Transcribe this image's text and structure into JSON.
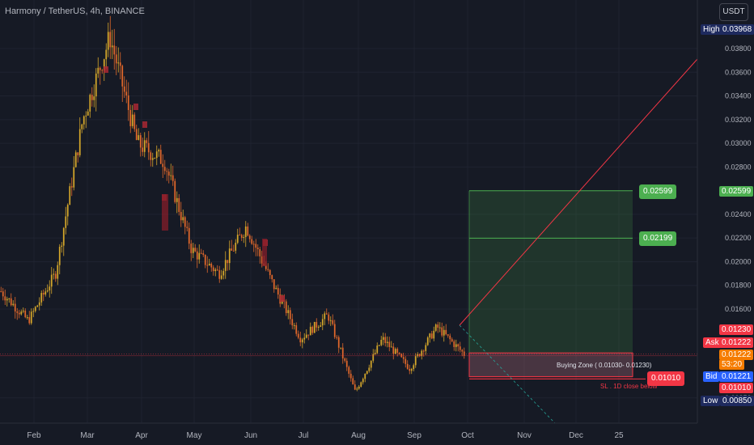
{
  "header": {
    "symbol_title": "Harmony / TetherUS, 4h, BINANCE",
    "currency_button": "USDT"
  },
  "price_axis": {
    "ticks": [
      "0.03800",
      "0.03600",
      "0.03400",
      "0.03200",
      "0.03000",
      "0.02800",
      "0.02400",
      "0.02200",
      "0.02000",
      "0.01800",
      "0.01600",
      "0.00850"
    ],
    "high_label": "High",
    "high_value": "0.03968",
    "low_label": "Low",
    "low_value": "0.00850",
    "ask_label": "Ask",
    "ask_value": "0.01222",
    "bid_label": "Bid",
    "bid_value": "0.01221",
    "last_price": "0.01222",
    "countdown": "53:20",
    "tag_01230": "0.01230",
    "tag_01010": "0.01010",
    "tag_02599": "0.02599"
  },
  "time_axis": {
    "labels": [
      "Feb",
      "Mar",
      "Apr",
      "May",
      "Jun",
      "Jul",
      "Aug",
      "Sep",
      "Oct",
      "Nov",
      "Dec",
      "25"
    ]
  },
  "annotations": {
    "target_2": "0.02599",
    "target_1": "0.02199",
    "stop_loss": "0.01010",
    "buying_zone": "Buying Zone ( 0.01030- 0.01230)",
    "sl_note": "SL . 1D close below"
  },
  "chart_data": {
    "type": "candlestick",
    "title": "Harmony / TetherUS, 4h, BINANCE",
    "x_months": [
      "Feb",
      "Mar",
      "Apr",
      "May",
      "Jun",
      "Jul",
      "Aug",
      "Sep",
      "Oct",
      "Nov",
      "Dec",
      "25"
    ],
    "ylim": [
      0.0085,
      0.04
    ],
    "price_path": [
      {
        "t": "Jan-end",
        "p": 0.0175
      },
      {
        "t": "Feb-mid",
        "p": 0.015
      },
      {
        "t": "Feb-end",
        "p": 0.019
      },
      {
        "t": "Mar-early",
        "p": 0.032
      },
      {
        "t": "Mar-mid",
        "p": 0.039
      },
      {
        "t": "Mar-end",
        "p": 0.03
      },
      {
        "t": "Apr-early",
        "p": 0.0285
      },
      {
        "t": "Apr-mid",
        "p": 0.021
      },
      {
        "t": "May",
        "p": 0.019
      },
      {
        "t": "Jun-early",
        "p": 0.023
      },
      {
        "t": "Jun-mid",
        "p": 0.018
      },
      {
        "t": "Jul",
        "p": 0.0135
      },
      {
        "t": "Aug-early",
        "p": 0.0155
      },
      {
        "t": "Aug-mid",
        "p": 0.009
      },
      {
        "t": "Sep-early",
        "p": 0.0135
      },
      {
        "t": "Sep-mid",
        "p": 0.011
      },
      {
        "t": "Oct-early",
        "p": 0.0145
      },
      {
        "t": "Oct-now",
        "p": 0.0122
      }
    ],
    "levels": {
      "target_2": 0.02599,
      "target_1": 0.02199,
      "buying_zone": [
        0.0103,
        0.0123
      ],
      "stop_loss": 0.0101,
      "high": 0.03968,
      "low": 0.0085
    },
    "colors": {
      "up": "#d4a62a",
      "down": "#e0672b",
      "profit": "#4caf50",
      "loss": "#f23645",
      "accent": "#2962ff"
    }
  }
}
